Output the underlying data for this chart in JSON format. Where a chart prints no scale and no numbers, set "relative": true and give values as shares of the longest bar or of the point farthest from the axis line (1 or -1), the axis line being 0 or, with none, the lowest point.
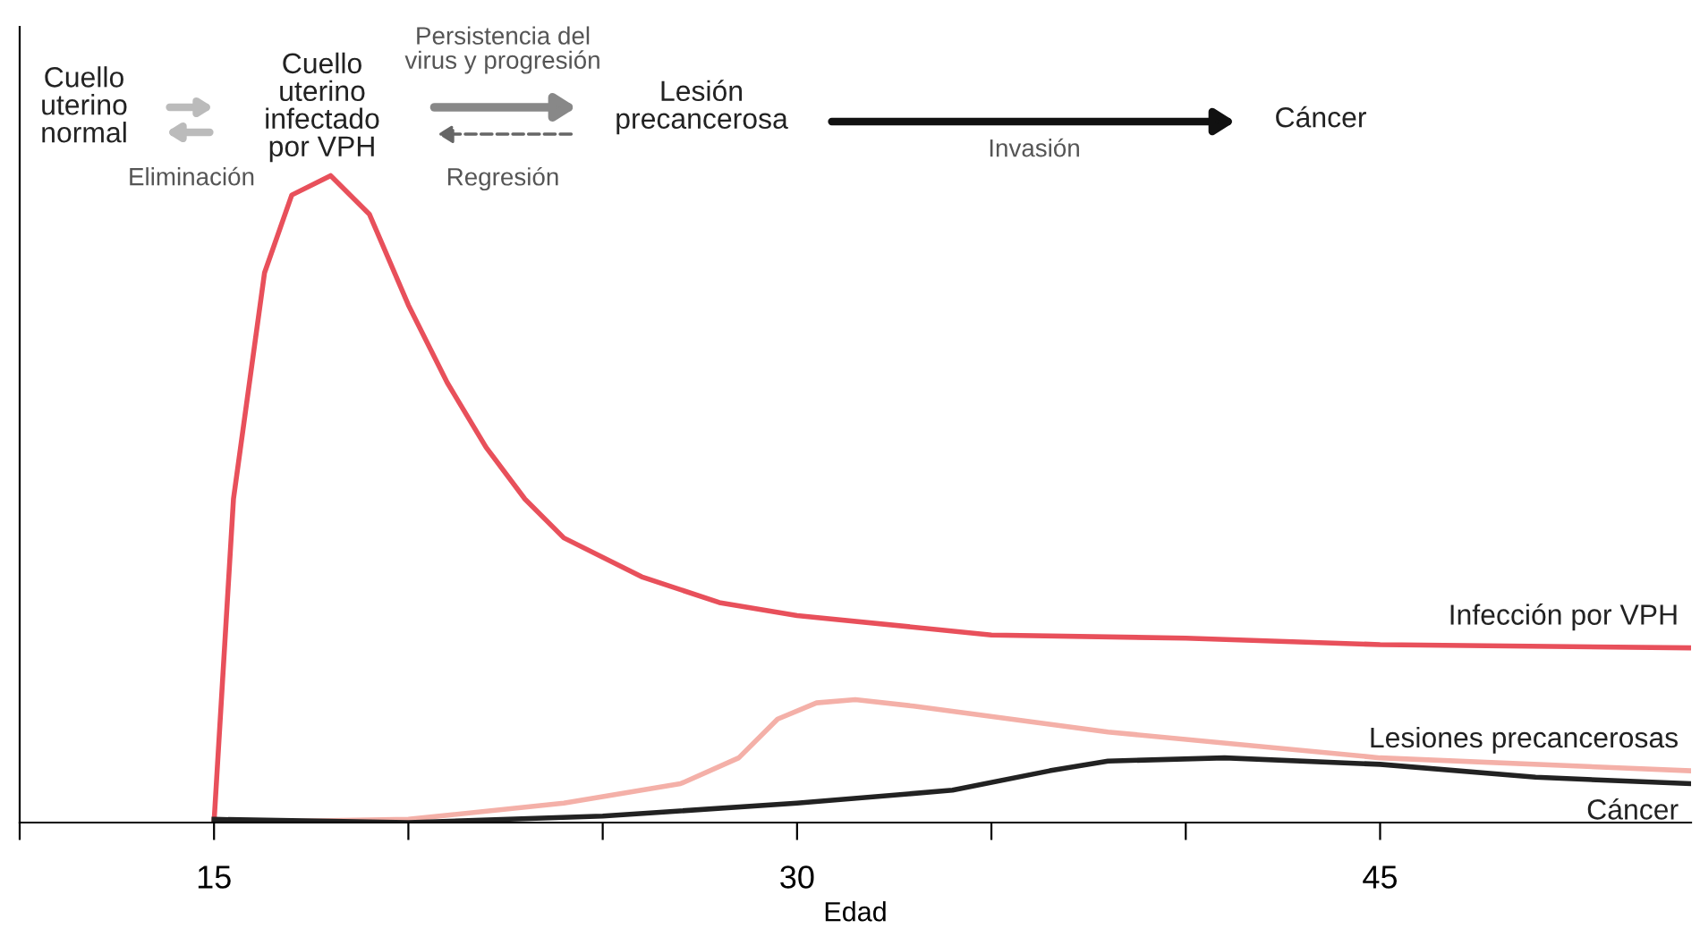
{
  "chart_data": {
    "type": "line",
    "relative": true,
    "xlabel": "Edad",
    "xlim": [
      10,
      53
    ],
    "xticks": [
      {
        "value": 10,
        "label": null
      },
      15,
      {
        "value": 20,
        "label": null
      },
      {
        "value": 25,
        "label": null
      },
      30,
      {
        "value": 35,
        "label": null
      },
      {
        "value": 40,
        "label": null
      },
      45
    ],
    "grid": false,
    "legend": false,
    "marker": "none",
    "line_style": "solid",
    "series": [
      {
        "name": "Infección por VPH",
        "color": "#e8505b",
        "x": [
          15,
          15.5,
          16.3,
          17,
          18,
          19,
          20,
          21,
          22,
          23,
          24,
          26,
          28,
          30,
          35,
          40,
          45,
          53
        ],
        "values": [
          0,
          0.5,
          0.85,
          0.97,
          1,
          0.94,
          0.8,
          0.68,
          0.58,
          0.5,
          0.44,
          0.38,
          0.34,
          0.32,
          0.29,
          0.285,
          0.275,
          0.27
        ]
      },
      {
        "name": "Lesiones precancerosas",
        "color": "#f4b0a8",
        "x": [
          15,
          20,
          24,
          27,
          28.5,
          29.5,
          30.5,
          31.5,
          33,
          38,
          45,
          53
        ],
        "values": [
          0,
          0.005,
          0.03,
          0.06,
          0.1,
          0.16,
          0.185,
          0.19,
          0.18,
          0.14,
          0.1,
          0.08
        ]
      },
      {
        "name": "Cáncer",
        "color": "#222222",
        "x": [
          15,
          20,
          25,
          30,
          34,
          36.5,
          38,
          41,
          45,
          49,
          53
        ],
        "values": [
          0.005,
          0,
          0.01,
          0.03,
          0.05,
          0.08,
          0.095,
          0.1,
          0.09,
          0.07,
          0.06
        ]
      }
    ],
    "annotations": [
      "Cuello\nuterino\nnormal",
      "Cuello\nuterino\ninfectado\npor VPH",
      "Lesión\nprecancerosa",
      "Cáncer",
      "Eliminación",
      "Persistencia del\nvirus y progresión",
      "Regresión",
      "Invasión"
    ]
  }
}
